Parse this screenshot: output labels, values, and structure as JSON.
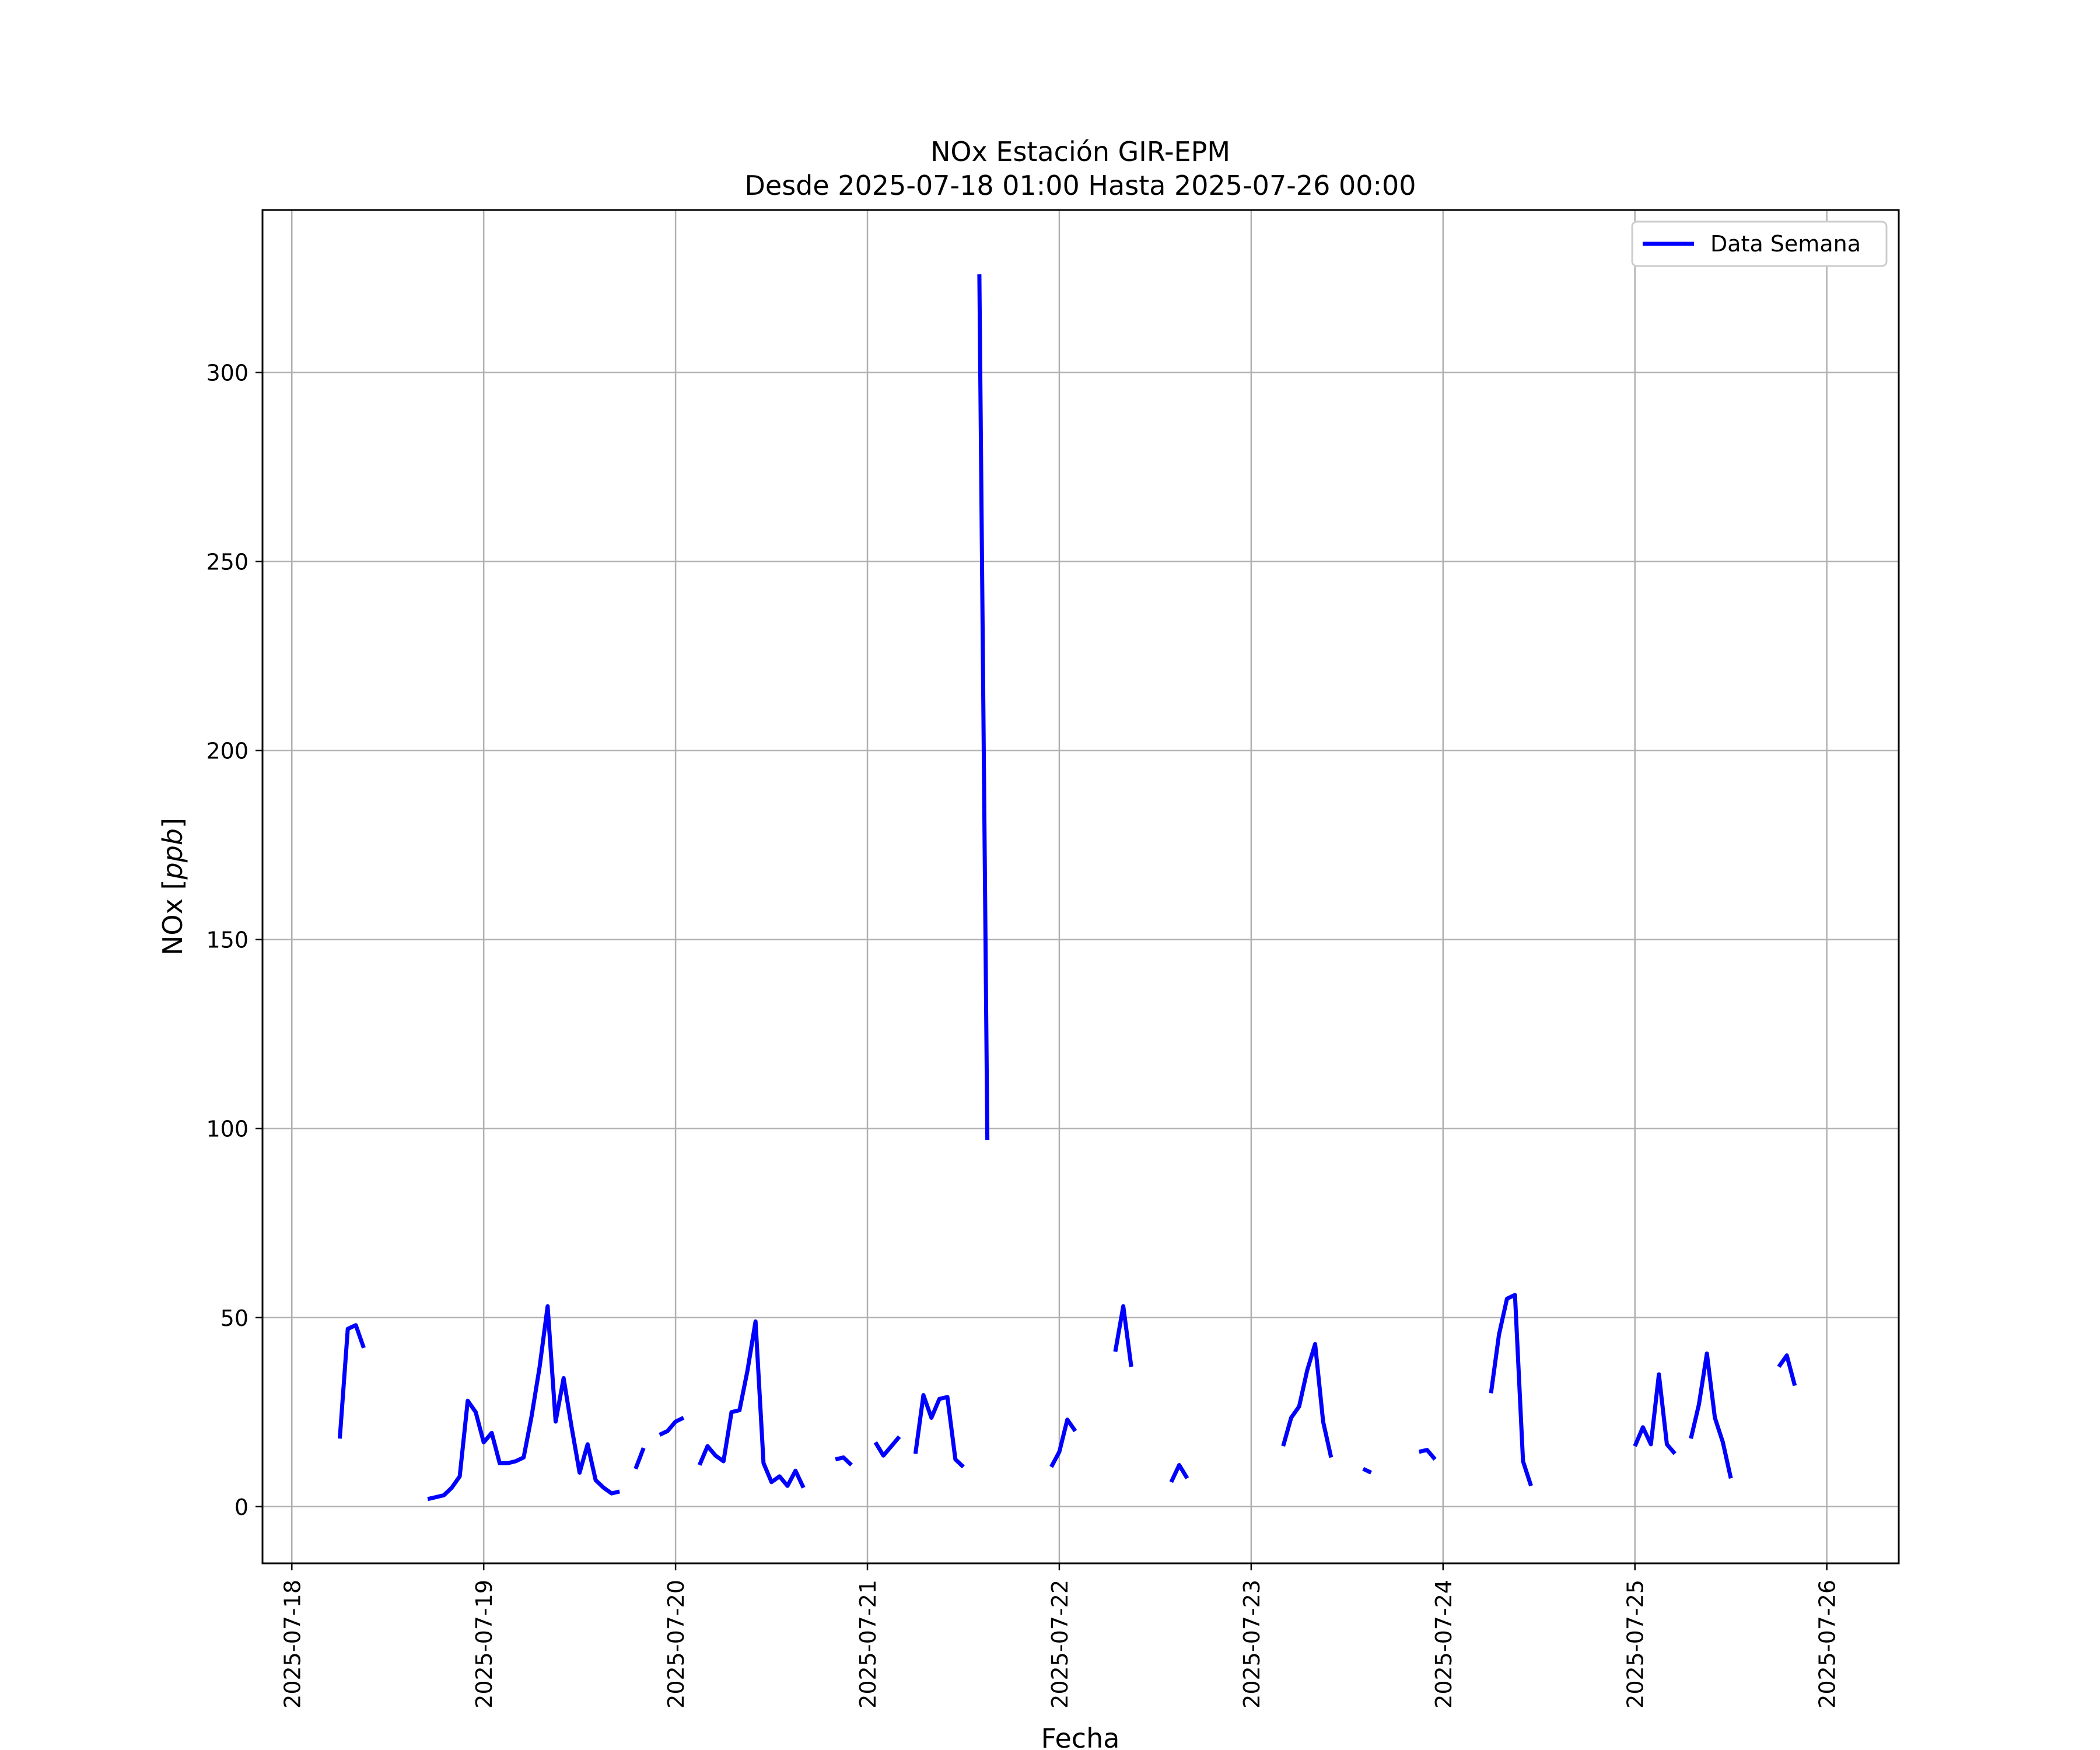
{
  "chart_data": {
    "type": "line",
    "title": "NOx Estación GIR-EPM",
    "subtitle": "Desde 2025-07-18 01:00 Hasta 2025-07-26 00:00",
    "xlabel": "Fecha",
    "ylabel": "NOx [ppb]",
    "ylabel_prefix": "NOx [",
    "ylabel_unit": "ppb",
    "ylabel_suffix": "]",
    "xlim": [
      "2025-07-17T20:20",
      "2025-07-26T09:00"
    ],
    "ylim": [
      -15,
      343
    ],
    "xticks": [
      "2025-07-18",
      "2025-07-19",
      "2025-07-20",
      "2025-07-21",
      "2025-07-22",
      "2025-07-23",
      "2025-07-24",
      "2025-07-25",
      "2025-07-26"
    ],
    "yticks": [
      0,
      50,
      100,
      150,
      200,
      250,
      300
    ],
    "grid": true,
    "legend": "top-right",
    "color": "#0000ff",
    "series": [
      {
        "name": "Data Semana",
        "segments": [
          [
            [
              "2025-07-18T06:00",
              18
            ],
            [
              "2025-07-18T07:00",
              47
            ],
            [
              "2025-07-18T08:00",
              48
            ],
            [
              "2025-07-18T09:00",
              42
            ]
          ],
          [
            [
              "2025-07-18T17:00",
              2
            ],
            [
              "2025-07-18T18:00",
              2.5
            ],
            [
              "2025-07-18T19:00",
              3
            ],
            [
              "2025-07-18T20:00",
              5
            ],
            [
              "2025-07-18T21:00",
              8
            ],
            [
              "2025-07-18T22:00",
              28
            ],
            [
              "2025-07-18T23:00",
              25
            ],
            [
              "2025-07-19T00:00",
              17
            ],
            [
              "2025-07-19T01:00",
              19.5
            ],
            [
              "2025-07-19T02:00",
              11.5
            ],
            [
              "2025-07-19T03:00",
              11.5
            ],
            [
              "2025-07-19T04:00",
              12
            ],
            [
              "2025-07-19T05:00",
              13
            ],
            [
              "2025-07-19T06:00",
              24
            ],
            [
              "2025-07-19T07:00",
              37
            ],
            [
              "2025-07-19T08:00",
              53
            ],
            [
              "2025-07-19T09:00",
              22.5
            ],
            [
              "2025-07-19T10:00",
              34
            ],
            [
              "2025-07-19T11:00",
              21
            ],
            [
              "2025-07-19T12:00",
              9
            ],
            [
              "2025-07-19T13:00",
              16.5
            ],
            [
              "2025-07-19T14:00",
              7
            ],
            [
              "2025-07-19T15:00",
              5
            ],
            [
              "2025-07-19T16:00",
              3.5
            ],
            [
              "2025-07-19T17:00",
              4
            ]
          ],
          [
            [
              "2025-07-19T19:00",
              10
            ],
            [
              "2025-07-19T20:00",
              15.5
            ]
          ],
          [
            [
              "2025-07-19T22:00",
              19
            ],
            [
              "2025-07-19T23:00",
              20
            ],
            [
              "2025-07-20T00:00",
              22.5
            ],
            [
              "2025-07-20T01:00",
              23.5
            ]
          ],
          [
            [
              "2025-07-20T03:00",
              11
            ],
            [
              "2025-07-20T04:00",
              16
            ],
            [
              "2025-07-20T05:00",
              13.5
            ],
            [
              "2025-07-20T06:00",
              12
            ],
            [
              "2025-07-20T07:00",
              25
            ],
            [
              "2025-07-20T08:00",
              25.5
            ],
            [
              "2025-07-20T09:00",
              36
            ],
            [
              "2025-07-20T10:00",
              49
            ],
            [
              "2025-07-20T11:00",
              11.5
            ],
            [
              "2025-07-20T12:00",
              6.5
            ],
            [
              "2025-07-20T13:00",
              8
            ],
            [
              "2025-07-20T14:00",
              5.5
            ],
            [
              "2025-07-20T15:00",
              9.5
            ],
            [
              "2025-07-20T16:00",
              5
            ]
          ],
          [
            [
              "2025-07-20T20:00",
              12.5
            ],
            [
              "2025-07-20T21:00",
              13
            ],
            [
              "2025-07-20T22:00",
              11
            ]
          ],
          [
            [
              "2025-07-21T01:00",
              17
            ],
            [
              "2025-07-21T02:00",
              13.5
            ],
            [
              "2025-07-21T03:00",
              16
            ],
            [
              "2025-07-21T04:00",
              18.5
            ]
          ],
          [
            [
              "2025-07-21T06:00",
              14
            ],
            [
              "2025-07-21T07:00",
              29.5
            ],
            [
              "2025-07-21T08:00",
              23.5
            ],
            [
              "2025-07-21T09:00",
              28.5
            ],
            [
              "2025-07-21T10:00",
              29
            ],
            [
              "2025-07-21T11:00",
              12.5
            ],
            [
              "2025-07-21T12:00",
              10.5
            ]
          ],
          [
            [
              "2025-07-21T14:00",
              326
            ],
            [
              "2025-07-21T15:00",
              97
            ]
          ],
          [
            [
              "2025-07-21T23:00",
              10.5
            ],
            [
              "2025-07-22T00:00",
              14.5
            ],
            [
              "2025-07-22T01:00",
              23
            ],
            [
              "2025-07-22T02:00",
              20
            ]
          ],
          [
            [
              "2025-07-22T07:00",
              41
            ],
            [
              "2025-07-22T08:00",
              53
            ],
            [
              "2025-07-22T09:00",
              37
            ]
          ],
          [
            [
              "2025-07-22T14:00",
              6.5
            ],
            [
              "2025-07-22T15:00",
              11
            ],
            [
              "2025-07-22T16:00",
              7.5
            ]
          ],
          [
            [
              "2025-07-23T04:00",
              16
            ],
            [
              "2025-07-23T05:00",
              23.5
            ],
            [
              "2025-07-23T06:00",
              26.5
            ],
            [
              "2025-07-23T07:00",
              36
            ],
            [
              "2025-07-23T08:00",
              43
            ],
            [
              "2025-07-23T09:00",
              22.5
            ],
            [
              "2025-07-23T10:00",
              13
            ]
          ],
          [
            [
              "2025-07-23T14:00",
              10
            ],
            [
              "2025-07-23T15:00",
              9
            ]
          ],
          [
            [
              "2025-07-23T21:00",
              14.5
            ],
            [
              "2025-07-23T22:00",
              15
            ],
            [
              "2025-07-23T23:00",
              12.5
            ]
          ],
          [
            [
              "2025-07-24T06:00",
              30
            ],
            [
              "2025-07-24T07:00",
              45.5
            ],
            [
              "2025-07-24T08:00",
              55
            ],
            [
              "2025-07-24T09:00",
              56
            ],
            [
              "2025-07-24T10:00",
              12
            ],
            [
              "2025-07-24T11:00",
              5.5
            ]
          ],
          [
            [
              "2025-07-25T00:00",
              16
            ],
            [
              "2025-07-25T01:00",
              21
            ],
            [
              "2025-07-25T02:00",
              16.5
            ],
            [
              "2025-07-25T03:00",
              35
            ],
            [
              "2025-07-25T04:00",
              16.5
            ],
            [
              "2025-07-25T05:00",
              14
            ]
          ],
          [
            [
              "2025-07-25T07:00",
              18
            ],
            [
              "2025-07-25T08:00",
              27
            ],
            [
              "2025-07-25T09:00",
              40.5
            ],
            [
              "2025-07-25T10:00",
              23.5
            ],
            [
              "2025-07-25T11:00",
              17
            ],
            [
              "2025-07-25T12:00",
              7.5
            ]
          ],
          [
            [
              "2025-07-25T18:00",
              37
            ],
            [
              "2025-07-25T19:00",
              40
            ],
            [
              "2025-07-25T20:00",
              32
            ]
          ]
        ]
      }
    ]
  }
}
